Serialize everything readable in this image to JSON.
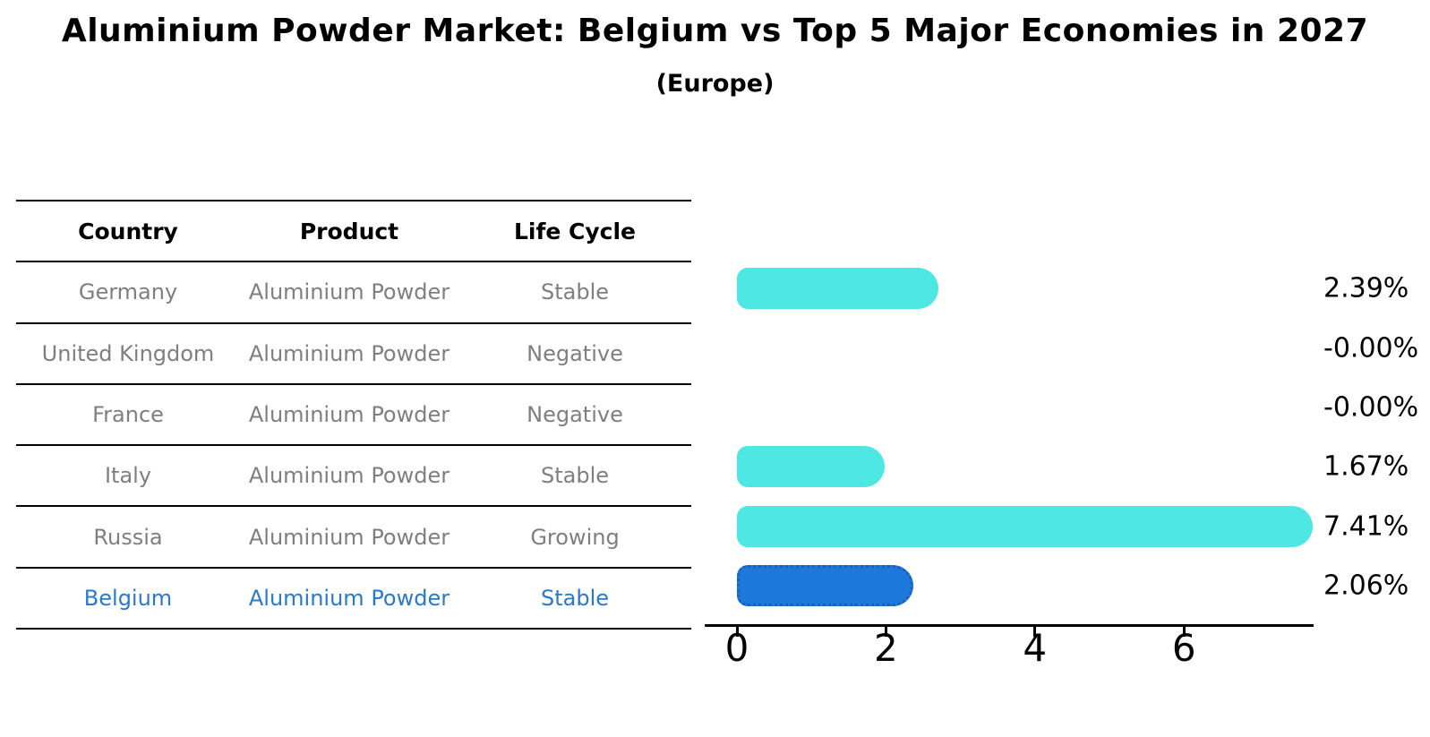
{
  "chart_data": {
    "type": "bar",
    "orientation": "horizontal",
    "title": "Aluminium Powder Market: Belgium vs Top 5 Major Economies in 2027",
    "subtitle": "(Europe)",
    "categories": [
      "Germany",
      "United Kingdom",
      "France",
      "Italy",
      "Russia",
      "Belgium"
    ],
    "values": [
      2.39,
      -0.0,
      -0.0,
      1.67,
      7.41,
      2.06
    ],
    "value_labels": [
      "2.39%",
      "-0.00%",
      "-0.00%",
      "1.67%",
      "7.41%",
      "2.06%"
    ],
    "x_ticks": [
      "0",
      "2",
      "4",
      "6"
    ],
    "x_tick_values": [
      0,
      2,
      4,
      6
    ],
    "xlim": [
      -0.43,
      7.74
    ],
    "highlight_index": 5,
    "grid": "off",
    "legend": "none",
    "colors": {
      "bar_default": "#4de8e4",
      "bar_highlight": "#1e78dc",
      "bar_highlight_border": "#1761bd",
      "table_text": "#7f7f7f",
      "table_header_text": "#000000",
      "highlight_text": "#2979cc",
      "axis": "#000000"
    }
  },
  "table": {
    "headers": [
      "Country",
      "Product",
      "Life Cycle"
    ],
    "rows": [
      {
        "country": "Germany",
        "product": "Aluminium Powder",
        "life_cycle": "Stable"
      },
      {
        "country": "United Kingdom",
        "product": "Aluminium Powder",
        "life_cycle": "Negative"
      },
      {
        "country": "France",
        "product": "Aluminium Powder",
        "life_cycle": "Negative"
      },
      {
        "country": "Italy",
        "product": "Aluminium Powder",
        "life_cycle": "Stable"
      },
      {
        "country": "Russia",
        "product": "Aluminium Powder",
        "life_cycle": "Growing"
      },
      {
        "country": "Belgium",
        "product": "Aluminium Powder",
        "life_cycle": "Stable"
      }
    ],
    "highlight_row_index": 5
  }
}
